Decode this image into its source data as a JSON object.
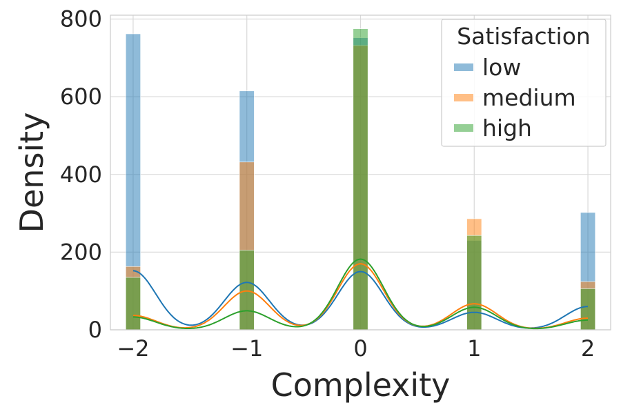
{
  "chart_data": {
    "type": "bar",
    "xlabel": "Complexity",
    "ylabel": "Density",
    "xlim": [
      -2.2,
      2.2
    ],
    "ylim": [
      0,
      810
    ],
    "xticks": [
      -2,
      -1,
      0,
      1,
      2
    ],
    "xtick_labels": [
      "−2",
      "−1",
      "0",
      "1",
      "2"
    ],
    "yticks": [
      0,
      200,
      400,
      600,
      800
    ],
    "ytick_labels": [
      "0",
      "200",
      "400",
      "600",
      "800"
    ],
    "grid": true,
    "bar_width": 0.13,
    "categories": [
      -2,
      -1,
      0,
      1,
      2
    ],
    "series": [
      {
        "name": "low",
        "color": "#1f77b4",
        "values": [
          762,
          615,
          752,
          230,
          302
        ],
        "kde": [
          152,
          122,
          150,
          45,
          60
        ]
      },
      {
        "name": "medium",
        "color": "#ff7f0e",
        "values": [
          163,
          432,
          732,
          286,
          124
        ],
        "kde": [
          37,
          100,
          170,
          67,
          30
        ]
      },
      {
        "name": "high",
        "color": "#2ca02c",
        "values": [
          135,
          205,
          775,
          243,
          106
        ],
        "kde": [
          33,
          49,
          182,
          58,
          25
        ]
      }
    ],
    "legend": {
      "title": "Satisfaction",
      "position": "top-right"
    }
  }
}
